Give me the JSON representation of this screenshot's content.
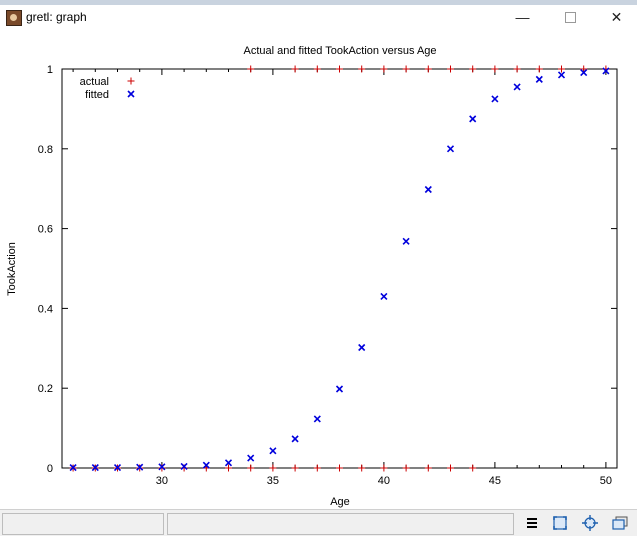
{
  "window": {
    "title": "gretl: graph",
    "minimize_glyph": "—",
    "close_glyph": "✕"
  },
  "chart_data": {
    "type": "scatter",
    "title": "Actual and fitted TookAction versus Age",
    "xlabel": "Age",
    "ylabel": "TookAction",
    "xlim": [
      25.5,
      50.5
    ],
    "ylim": [
      0,
      1
    ],
    "x_ticks": [
      30,
      35,
      40,
      45,
      50
    ],
    "y_ticks": [
      0,
      0.2,
      0.4,
      0.6,
      0.8,
      1
    ],
    "y_tick_labels": [
      "0",
      "0.2",
      "0.4",
      "0.6",
      "0.8",
      "1"
    ],
    "legend_position": "top-left",
    "series": [
      {
        "name": "actual",
        "marker": "+",
        "color": "#cc0000",
        "points": [
          [
            26,
            0
          ],
          [
            27,
            0
          ],
          [
            28,
            0
          ],
          [
            29,
            0
          ],
          [
            30,
            0
          ],
          [
            31,
            0
          ],
          [
            32,
            0
          ],
          [
            33,
            0
          ],
          [
            34,
            0
          ],
          [
            35,
            0
          ],
          [
            36,
            0
          ],
          [
            37,
            0
          ],
          [
            38,
            0
          ],
          [
            39,
            0
          ],
          [
            40,
            0
          ],
          [
            41,
            0
          ],
          [
            42,
            0
          ],
          [
            43,
            0
          ],
          [
            44,
            0
          ],
          [
            34,
            1
          ],
          [
            36,
            1
          ],
          [
            37,
            1
          ],
          [
            38,
            1
          ],
          [
            39,
            1
          ],
          [
            40,
            1
          ],
          [
            41,
            1
          ],
          [
            42,
            1
          ],
          [
            43,
            1
          ],
          [
            44,
            1
          ],
          [
            45,
            1
          ],
          [
            46,
            1
          ],
          [
            47,
            1
          ],
          [
            48,
            1
          ],
          [
            49,
            1
          ],
          [
            50,
            1
          ]
        ]
      },
      {
        "name": "fitted",
        "marker": "x",
        "color": "#0000dd",
        "points": [
          [
            26,
            0.001
          ],
          [
            27,
            0.001
          ],
          [
            28,
            0.001
          ],
          [
            29,
            0.002
          ],
          [
            30,
            0.003
          ],
          [
            31,
            0.004
          ],
          [
            32,
            0.007
          ],
          [
            33,
            0.013
          ],
          [
            34,
            0.025
          ],
          [
            35,
            0.043
          ],
          [
            36,
            0.073
          ],
          [
            37,
            0.123
          ],
          [
            38,
            0.198
          ],
          [
            39,
            0.302
          ],
          [
            40,
            0.43
          ],
          [
            41,
            0.568
          ],
          [
            42,
            0.698
          ],
          [
            43,
            0.8
          ],
          [
            44,
            0.875
          ],
          [
            45,
            0.925
          ],
          [
            46,
            0.955
          ],
          [
            47,
            0.974
          ],
          [
            48,
            0.985
          ],
          [
            49,
            0.991
          ],
          [
            50,
            0.995
          ]
        ]
      }
    ]
  },
  "statusbar": {
    "buttons": [
      "menu-icon",
      "zoom-icon",
      "crosshair-icon",
      "restore-window-icon"
    ]
  }
}
